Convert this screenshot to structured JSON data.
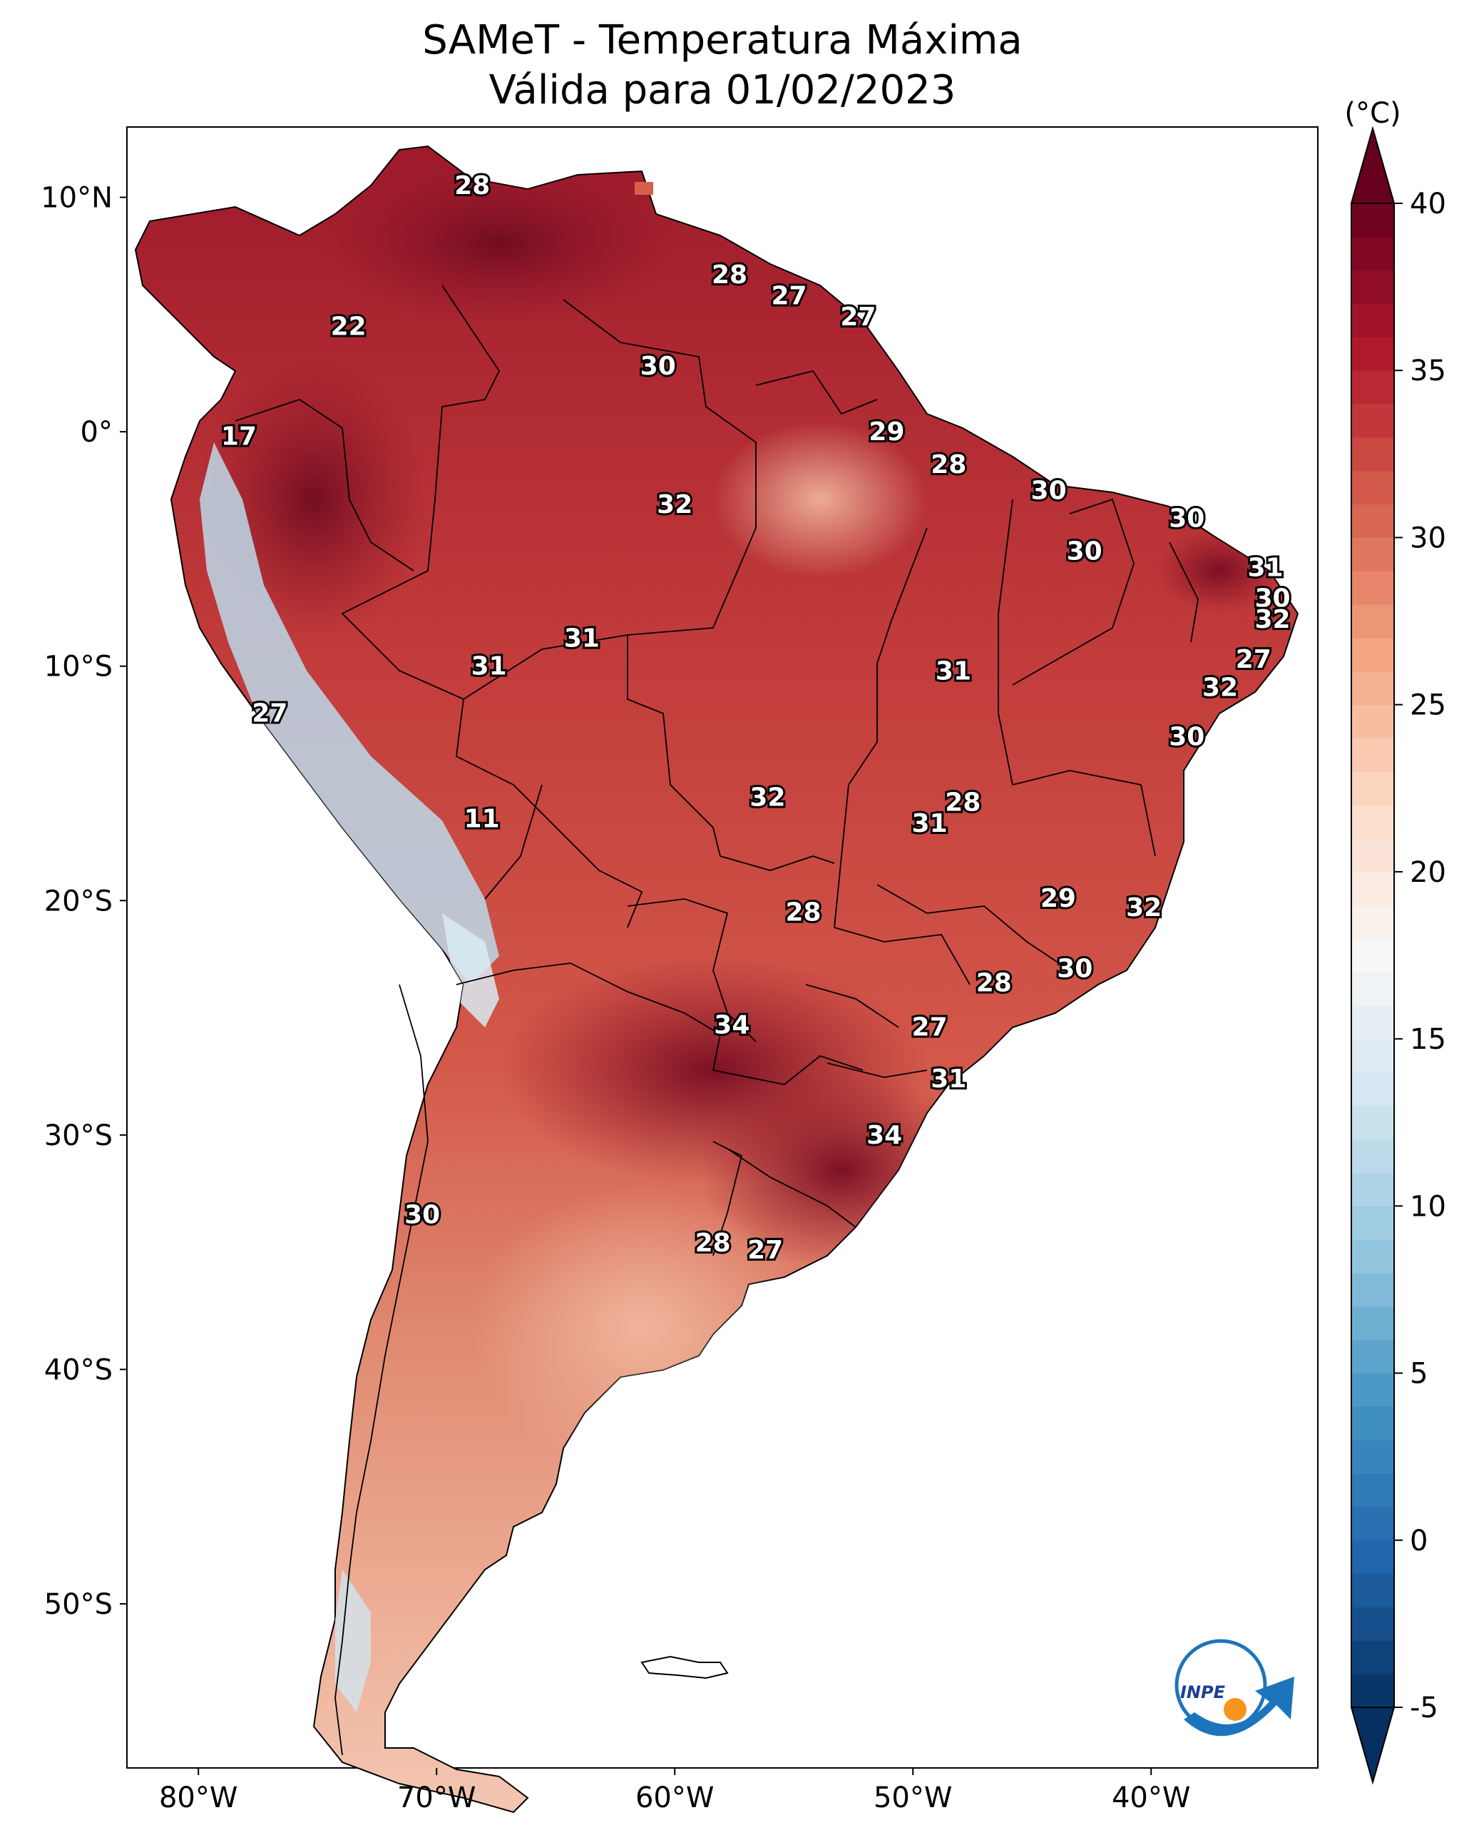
{
  "title": {
    "line1": "SAMeT - Temperatura Máxima",
    "line2": "Válida para 01/02/2023"
  },
  "map_axes": {
    "lon_ticks": [
      "80°W",
      "70°W",
      "60°W",
      "50°W",
      "40°W"
    ],
    "lon_values": [
      -80,
      -70,
      -60,
      -50,
      -40
    ],
    "lat_ticks": [
      "10°N",
      "0°",
      "10°S",
      "20°S",
      "30°S",
      "40°S",
      "50°S"
    ],
    "lat_values": [
      10,
      0,
      -10,
      -20,
      -30,
      -40,
      -50
    ],
    "lon_range": [
      -83,
      -33
    ],
    "lat_range": [
      -57,
      13
    ]
  },
  "colorbar": {
    "unit_label": "(°C)",
    "ticks": [
      "40",
      "35",
      "30",
      "25",
      "20",
      "15",
      "10",
      "5",
      "0",
      "-5"
    ],
    "tick_values": [
      40,
      35,
      30,
      25,
      20,
      15,
      10,
      5,
      0,
      -5
    ],
    "range": [
      -5,
      40
    ],
    "colors": [
      "#053061",
      "#2166ac",
      "#4393c3",
      "#92c5de",
      "#d1e5f0",
      "#f7f7f7",
      "#fddbc7",
      "#f4a582",
      "#d6604d",
      "#b2182b",
      "#67001f"
    ]
  },
  "city_values": [
    {
      "value": "28",
      "lon": -68.5,
      "lat": 10.5
    },
    {
      "value": "22",
      "lon": -73.7,
      "lat": 4.5
    },
    {
      "value": "17",
      "lon": -78.3,
      "lat": -0.2
    },
    {
      "value": "28",
      "lon": -57.7,
      "lat": 6.7
    },
    {
      "value": "27",
      "lon": -55.2,
      "lat": 5.8
    },
    {
      "value": "27",
      "lon": -52.3,
      "lat": 4.9
    },
    {
      "value": "30",
      "lon": -60.7,
      "lat": 2.8
    },
    {
      "value": "29",
      "lon": -51.1,
      "lat": 0.0
    },
    {
      "value": "28",
      "lon": -48.5,
      "lat": -1.4
    },
    {
      "value": "30",
      "lon": -44.3,
      "lat": -2.5
    },
    {
      "value": "30",
      "lon": -38.5,
      "lat": -3.7
    },
    {
      "value": "30",
      "lon": -42.8,
      "lat": -5.1
    },
    {
      "value": "31",
      "lon": -35.2,
      "lat": -5.8
    },
    {
      "value": "30",
      "lon": -34.9,
      "lat": -7.1
    },
    {
      "value": "32",
      "lon": -34.9,
      "lat": -8.0
    },
    {
      "value": "27",
      "lon": -35.7,
      "lat": -9.7
    },
    {
      "value": "32",
      "lon": -37.1,
      "lat": -10.9
    },
    {
      "value": "30",
      "lon": -38.5,
      "lat": -13.0
    },
    {
      "value": "32",
      "lon": -60.0,
      "lat": -3.1
    },
    {
      "value": "31",
      "lon": -63.9,
      "lat": -8.8
    },
    {
      "value": "31",
      "lon": -67.8,
      "lat": -10.0
    },
    {
      "value": "31",
      "lon": -48.3,
      "lat": -10.2
    },
    {
      "value": "27",
      "lon": -77.0,
      "lat": -12.0
    },
    {
      "value": "11",
      "lon": -68.1,
      "lat": -16.5
    },
    {
      "value": "32",
      "lon": -56.1,
      "lat": -15.6
    },
    {
      "value": "28",
      "lon": -47.9,
      "lat": -15.8
    },
    {
      "value": "31",
      "lon": -49.3,
      "lat": -16.7
    },
    {
      "value": "29",
      "lon": -43.9,
      "lat": -19.9
    },
    {
      "value": "32",
      "lon": -40.3,
      "lat": -20.3
    },
    {
      "value": "28",
      "lon": -54.6,
      "lat": -20.5
    },
    {
      "value": "30",
      "lon": -43.2,
      "lat": -22.9
    },
    {
      "value": "28",
      "lon": -46.6,
      "lat": -23.5
    },
    {
      "value": "34",
      "lon": -57.6,
      "lat": -25.3
    },
    {
      "value": "27",
      "lon": -49.3,
      "lat": -25.4
    },
    {
      "value": "31",
      "lon": -48.5,
      "lat": -27.6
    },
    {
      "value": "34",
      "lon": -51.2,
      "lat": -30.0
    },
    {
      "value": "30",
      "lon": -70.6,
      "lat": -33.4
    },
    {
      "value": "28",
      "lon": -58.4,
      "lat": -34.6
    },
    {
      "value": "27",
      "lon": -56.2,
      "lat": -34.9
    }
  ],
  "logo": {
    "text": "INPE"
  }
}
